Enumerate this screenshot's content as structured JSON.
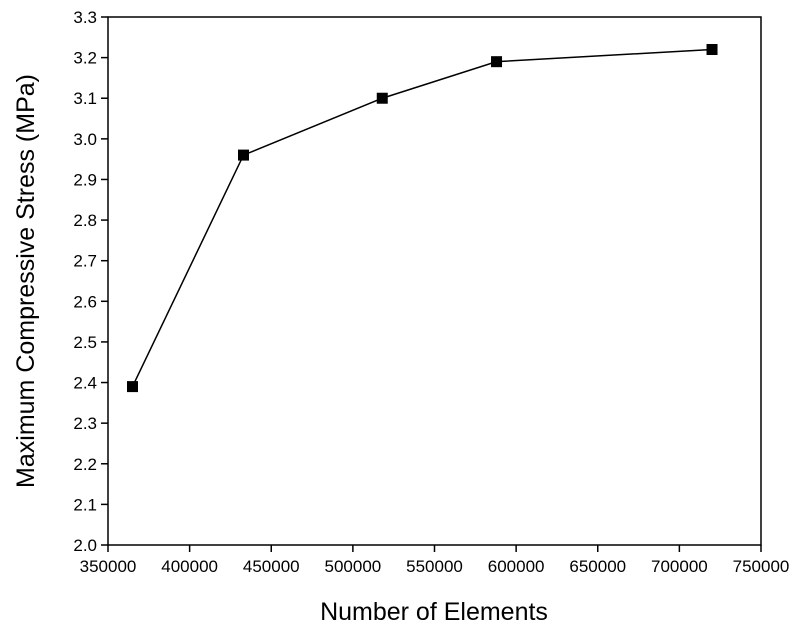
{
  "chart_data": {
    "type": "line",
    "title": "",
    "xlabel": "Number of Elements",
    "ylabel": "Maximum Compressive Stress (MPa)",
    "xlim": [
      350000,
      750000
    ],
    "ylim": [
      2.0,
      3.3
    ],
    "xticks": [
      350000,
      400000,
      450000,
      500000,
      550000,
      600000,
      650000,
      700000,
      750000
    ],
    "xtick_labels": [
      "350000",
      "400000",
      "450000",
      "500000",
      "550000",
      "600000",
      "650000",
      "700000",
      "750000"
    ],
    "yticks": [
      2.0,
      2.1,
      2.2,
      2.3,
      2.4,
      2.5,
      2.6,
      2.7,
      2.8,
      2.9,
      3.0,
      3.1,
      3.2,
      3.3
    ],
    "ytick_labels": [
      "2.0",
      "2.1",
      "2.2",
      "2.3",
      "2.4",
      "2.5",
      "2.6",
      "2.7",
      "2.8",
      "2.9",
      "3.0",
      "3.1",
      "3.2",
      "3.3"
    ],
    "grid": false,
    "legend": "none",
    "marker": "square",
    "color": "#000000",
    "series": [
      {
        "x": [
          365000,
          433000,
          518000,
          588000,
          720000
        ],
        "y": [
          2.39,
          2.96,
          3.1,
          3.19,
          3.22
        ]
      }
    ]
  }
}
